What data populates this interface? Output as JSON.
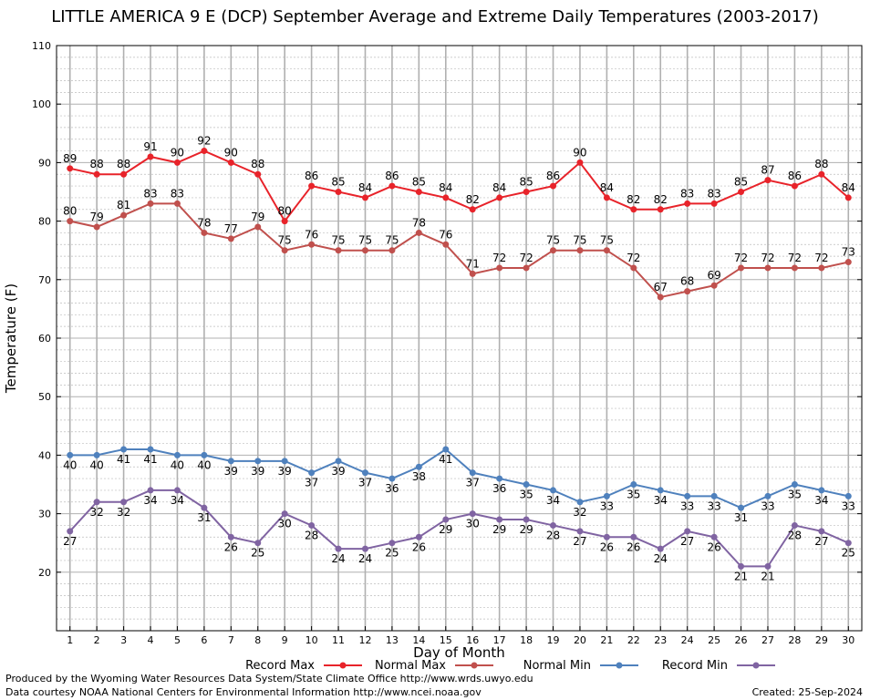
{
  "chart_data": {
    "type": "line",
    "title": "LITTLE AMERICA 9 E (DCP) September Average and Extreme Daily Temperatures (2003-2017)",
    "xlabel": "Day of Month",
    "ylabel": "Temperature (F)",
    "x": [
      1,
      2,
      3,
      4,
      5,
      6,
      7,
      8,
      9,
      10,
      11,
      12,
      13,
      14,
      15,
      16,
      17,
      18,
      19,
      20,
      21,
      22,
      23,
      24,
      25,
      26,
      27,
      28,
      29,
      30
    ],
    "xlim": [
      0.5,
      30.5
    ],
    "ylim": [
      10,
      110
    ],
    "yticks": [
      20,
      30,
      40,
      50,
      60,
      70,
      80,
      90,
      100,
      110
    ],
    "grid": true,
    "legend_position": "bottom",
    "data_labels": true,
    "series": [
      {
        "name": "Record Max",
        "color": "#e8232a",
        "values": [
          89,
          88,
          88,
          91,
          90,
          92,
          90,
          88,
          80,
          86,
          85,
          84,
          86,
          85,
          84,
          82,
          84,
          85,
          86,
          90,
          84,
          82,
          82,
          83,
          83,
          85,
          87,
          86,
          88,
          84
        ]
      },
      {
        "name": "Normal Max",
        "color": "#c0504d",
        "values": [
          80,
          79,
          81,
          83,
          83,
          78,
          77,
          79,
          75,
          76,
          75,
          75,
          75,
          78,
          76,
          71,
          72,
          72,
          75,
          75,
          75,
          72,
          67,
          68,
          69,
          72,
          72,
          72,
          72,
          73
        ]
      },
      {
        "name": "Normal Min",
        "color": "#4f81bd",
        "values": [
          40,
          40,
          41,
          41,
          40,
          40,
          39,
          39,
          39,
          37,
          39,
          37,
          36,
          38,
          41,
          37,
          36,
          35,
          34,
          32,
          33,
          35,
          34,
          33,
          33,
          31,
          33,
          35,
          34,
          33
        ]
      },
      {
        "name": "Record Min",
        "color": "#8064a2",
        "values": [
          27,
          32,
          32,
          34,
          34,
          31,
          26,
          25,
          30,
          28,
          24,
          24,
          25,
          26,
          29,
          30,
          29,
          29,
          28,
          27,
          26,
          26,
          24,
          27,
          26,
          21,
          21,
          28,
          27,
          25
        ]
      }
    ]
  },
  "footer": {
    "produced_by": "Produced by the Wyoming Water Resources Data System/State Climate Office http://www.wrds.uwyo.edu",
    "data_courtesy": "Data courtesy NOAA National Centers for Environmental Information http://www.ncei.noaa.gov",
    "created": "Created:  25-Sep-2024"
  }
}
